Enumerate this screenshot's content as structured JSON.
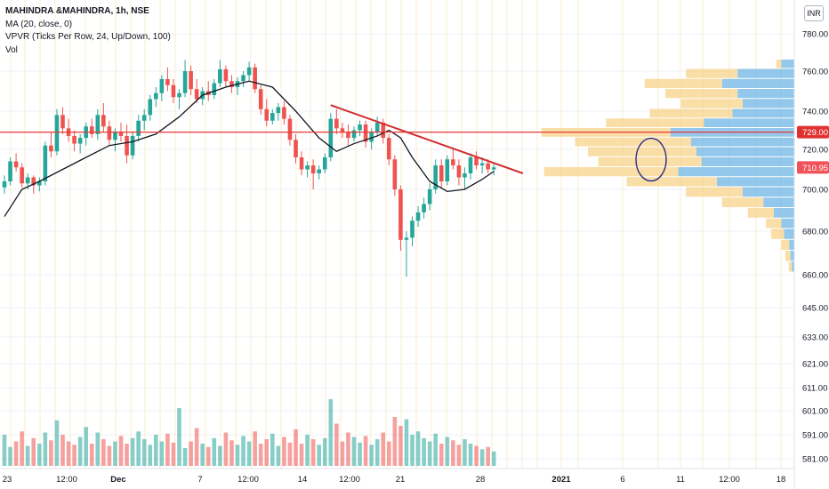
{
  "legend": {
    "symbol": "MAHINDRA &MAHINDRA, 1h, NSE",
    "ma": "MA (20, close, 0)",
    "vpvr": "VPVR (Ticks Per Row, 24, Up/Down, 100)",
    "vol": "Vol"
  },
  "currency_button": "INR",
  "price_tags": [
    {
      "label": "729.00",
      "value": 729.0,
      "color": "#e03131"
    },
    {
      "label": "710.95",
      "value": 710.95,
      "color": "#f0525a"
    }
  ],
  "colors": {
    "up": "#26a69a",
    "down": "#ef5350",
    "ma_line": "#131722",
    "trendline": "#d32f2f",
    "horizontal_line": "#e53935",
    "vpvr_up": "#6fb6e6",
    "vpvr_down": "#f7d38a",
    "annotation": "#1a237e"
  },
  "chart_data": {
    "type": "candlestick",
    "y_axis": {
      "ticks": [
        780,
        760,
        740,
        720,
        700,
        680,
        660,
        645,
        633,
        621,
        611,
        601,
        591,
        581
      ],
      "tick_labels": [
        "780.00",
        "760.00",
        "740.00",
        "720.00",
        "700.00",
        "680.00",
        "660.00",
        "645.00",
        "633.00",
        "621.00",
        "611.00",
        "601.00",
        "591.00",
        "581.00"
      ]
    },
    "x_axis": {
      "labels": [
        "23",
        "12:00",
        "Dec",
        "7",
        "12:00",
        "14",
        "12:00",
        "21",
        "28",
        "2021",
        "6",
        "11",
        "12:00",
        "18"
      ],
      "bold": [
        "Dec",
        "2021"
      ]
    },
    "candles": [
      [
        701,
        707,
        698,
        704
      ],
      [
        704,
        716,
        702,
        714
      ],
      [
        714,
        718,
        709,
        711
      ],
      [
        711,
        713,
        701,
        703
      ],
      [
        703,
        708,
        700,
        706
      ],
      [
        706,
        707,
        698,
        702
      ],
      [
        702,
        706,
        699,
        704
      ],
      [
        704,
        724,
        702,
        722
      ],
      [
        722,
        729,
        716,
        719
      ],
      [
        719,
        741,
        717,
        738
      ],
      [
        738,
        742,
        728,
        731
      ],
      [
        731,
        736,
        724,
        727
      ],
      [
        727,
        730,
        719,
        723
      ],
      [
        723,
        728,
        718,
        726
      ],
      [
        726,
        734,
        722,
        732
      ],
      [
        732,
        736,
        726,
        728
      ],
      [
        728,
        741,
        725,
        738
      ],
      [
        738,
        744,
        729,
        732
      ],
      [
        732,
        735,
        722,
        725
      ],
      [
        725,
        731,
        719,
        729
      ],
      [
        729,
        734,
        724,
        727
      ],
      [
        727,
        733,
        713,
        717
      ],
      [
        717,
        729,
        715,
        727
      ],
      [
        727,
        738,
        724,
        735
      ],
      [
        735,
        741,
        730,
        738
      ],
      [
        738,
        748,
        735,
        746
      ],
      [
        746,
        752,
        742,
        749
      ],
      [
        749,
        758,
        745,
        756
      ],
      [
        756,
        762,
        750,
        753
      ],
      [
        753,
        756,
        744,
        747
      ],
      [
        747,
        751,
        741,
        749
      ],
      [
        749,
        766,
        747,
        760
      ],
      [
        760,
        763,
        748,
        751
      ],
      [
        751,
        756,
        744,
        746
      ],
      [
        746,
        752,
        743,
        750
      ],
      [
        750,
        755,
        745,
        748
      ],
      [
        748,
        756,
        746,
        754
      ],
      [
        754,
        766,
        752,
        761
      ],
      [
        761,
        763,
        752,
        755
      ],
      [
        755,
        758,
        749,
        752
      ],
      [
        752,
        757,
        748,
        755
      ],
      [
        755,
        760,
        752,
        758
      ],
      [
        758,
        765,
        755,
        762
      ],
      [
        762,
        764,
        749,
        751
      ],
      [
        751,
        753,
        738,
        741
      ],
      [
        741,
        746,
        732,
        735
      ],
      [
        735,
        741,
        733,
        739
      ],
      [
        739,
        744,
        735,
        742
      ],
      [
        742,
        745,
        733,
        736
      ],
      [
        736,
        738,
        722,
        725
      ],
      [
        725,
        728,
        713,
        716
      ],
      [
        716,
        719,
        707,
        710
      ],
      [
        710,
        714,
        706,
        712
      ],
      [
        712,
        715,
        700,
        708
      ],
      [
        708,
        712,
        705,
        710
      ],
      [
        710,
        718,
        708,
        716
      ],
      [
        716,
        739,
        714,
        736
      ],
      [
        736,
        741,
        728,
        731
      ],
      [
        731,
        734,
        726,
        729
      ],
      [
        729,
        733,
        722,
        726
      ],
      [
        726,
        732,
        724,
        730
      ],
      [
        730,
        735,
        727,
        733
      ],
      [
        733,
        735,
        721,
        724
      ],
      [
        724,
        731,
        720,
        729
      ],
      [
        729,
        737,
        727,
        734
      ],
      [
        734,
        736,
        723,
        726
      ],
      [
        726,
        728,
        712,
        715
      ],
      [
        715,
        717,
        697,
        700
      ],
      [
        700,
        702,
        671,
        676
      ],
      [
        676,
        680,
        659,
        677
      ],
      [
        677,
        687,
        673,
        685
      ],
      [
        685,
        692,
        682,
        689
      ],
      [
        689,
        696,
        686,
        693
      ],
      [
        693,
        703,
        690,
        700
      ],
      [
        700,
        715,
        698,
        712
      ],
      [
        712,
        715,
        701,
        704
      ],
      [
        704,
        717,
        702,
        715
      ],
      [
        715,
        720,
        710,
        712
      ],
      [
        712,
        715,
        702,
        706
      ],
      [
        706,
        711,
        700,
        708
      ],
      [
        708,
        718,
        705,
        716
      ],
      [
        716,
        719,
        710,
        712
      ],
      [
        712,
        716,
        708,
        713
      ],
      [
        713,
        715,
        708,
        710
      ],
      [
        710,
        713,
        707,
        711
      ]
    ],
    "volumes": [
      0.28,
      0.17,
      0.22,
      0.31,
      0.18,
      0.25,
      0.2,
      0.3,
      0.23,
      0.41,
      0.28,
      0.22,
      0.19,
      0.26,
      0.35,
      0.2,
      0.3,
      0.24,
      0.18,
      0.22,
      0.27,
      0.2,
      0.25,
      0.31,
      0.24,
      0.19,
      0.28,
      0.22,
      0.29,
      0.21,
      0.52,
      0.16,
      0.22,
      0.34,
      0.2,
      0.17,
      0.25,
      0.18,
      0.3,
      0.23,
      0.19,
      0.27,
      0.22,
      0.31,
      0.2,
      0.24,
      0.29,
      0.18,
      0.26,
      0.21,
      0.33,
      0.2,
      0.28,
      0.24,
      0.19,
      0.25,
      0.6,
      0.38,
      0.22,
      0.3,
      0.26,
      0.21,
      0.27,
      0.19,
      0.24,
      0.3,
      0.22,
      0.44,
      0.36,
      0.42,
      0.28,
      0.31,
      0.25,
      0.22,
      0.29,
      0.2,
      0.26,
      0.23,
      0.19,
      0.24,
      0.2,
      0.18,
      0.15,
      0.17,
      0.13
    ],
    "moving_average": [
      [
        0,
        687
      ],
      [
        3,
        700
      ],
      [
        6,
        704
      ],
      [
        10,
        710
      ],
      [
        14,
        716
      ],
      [
        18,
        722
      ],
      [
        22,
        724
      ],
      [
        26,
        728
      ],
      [
        30,
        737
      ],
      [
        34,
        748
      ],
      [
        38,
        752
      ],
      [
        42,
        755
      ],
      [
        46,
        752
      ],
      [
        50,
        740
      ],
      [
        54,
        726
      ],
      [
        57,
        719
      ],
      [
        60,
        723
      ],
      [
        64,
        727
      ],
      [
        66,
        730
      ],
      [
        68,
        726
      ],
      [
        70,
        716
      ],
      [
        73,
        704
      ],
      [
        76,
        699
      ],
      [
        79,
        700
      ],
      [
        82,
        705
      ],
      [
        84,
        709
      ]
    ],
    "trendline": {
      "from": [
        56,
        743
      ],
      "to": [
        89,
        708
      ]
    },
    "horizontal_line": 729.0,
    "volume_profile": [
      {
        "price": 765,
        "up": 0.05,
        "down": 0.02
      },
      {
        "price": 760,
        "up": 0.22,
        "down": 0.2
      },
      {
        "price": 755,
        "up": 0.28,
        "down": 0.3
      },
      {
        "price": 750,
        "up": 0.22,
        "down": 0.28
      },
      {
        "price": 745,
        "up": 0.2,
        "down": 0.24
      },
      {
        "price": 740,
        "up": 0.24,
        "down": 0.32
      },
      {
        "price": 735,
        "up": 0.35,
        "down": 0.38
      },
      {
        "price": 730,
        "up": 0.48,
        "down": 0.5
      },
      {
        "price": 725,
        "up": 0.4,
        "down": 0.45
      },
      {
        "price": 720,
        "up": 0.38,
        "down": 0.42
      },
      {
        "price": 715,
        "up": 0.36,
        "down": 0.4
      },
      {
        "price": 710,
        "up": 0.45,
        "down": 0.52
      },
      {
        "price": 705,
        "up": 0.3,
        "down": 0.35
      },
      {
        "price": 700,
        "up": 0.2,
        "down": 0.22
      },
      {
        "price": 695,
        "up": 0.12,
        "down": 0.16
      },
      {
        "price": 690,
        "up": 0.08,
        "down": 0.1
      },
      {
        "price": 685,
        "up": 0.05,
        "down": 0.06
      },
      {
        "price": 680,
        "up": 0.04,
        "down": 0.05
      },
      {
        "price": 675,
        "up": 0.02,
        "down": 0.03
      },
      {
        "price": 670,
        "up": 0.015,
        "down": 0.02
      },
      {
        "price": 665,
        "up": 0.01,
        "down": 0.012
      }
    ],
    "annotation": {
      "shape": "circle",
      "price": 714
    }
  }
}
